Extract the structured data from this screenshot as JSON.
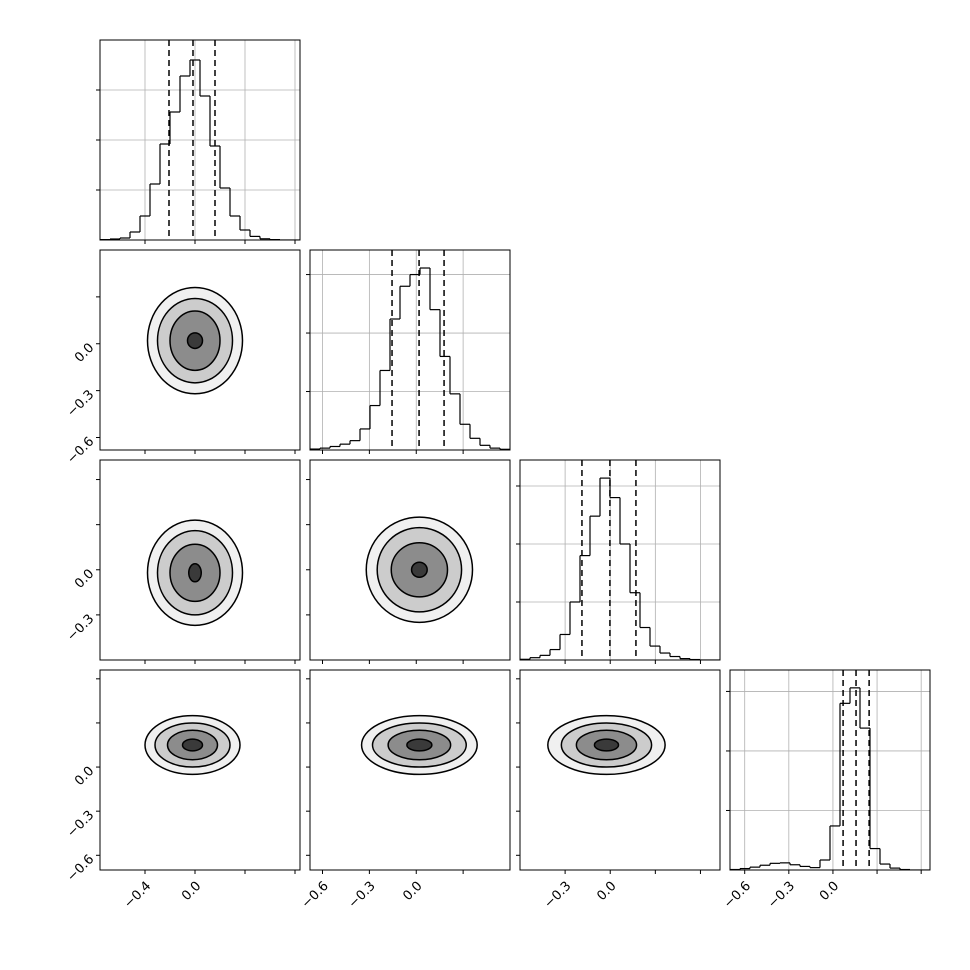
{
  "chart_data": [
    {
      "type": "histogram",
      "color": "#000000",
      "grid": true,
      "bins": [
        -0.76,
        -0.68,
        -0.6,
        -0.52,
        -0.44,
        -0.36,
        -0.28,
        -0.2,
        -0.12,
        -0.04,
        0.04,
        0.12,
        0.2,
        0.28,
        0.36,
        0.44,
        0.52,
        0.6,
        0.68,
        0.76,
        0.84
      ],
      "counts": [
        2,
        5,
        10,
        40,
        120,
        280,
        480,
        640,
        820,
        900,
        720,
        470,
        260,
        120,
        50,
        18,
        6,
        2,
        0,
        0
      ],
      "quantiles": [
        -0.208,
        -0.016,
        0.16
      ],
      "xlim": [
        -0.76,
        0.84
      ],
      "ylim": [
        0,
        1000
      ],
      "xticks": [
        -0.4,
        0,
        0.4,
        0.8
      ],
      "yticks": [
        250,
        500,
        750
      ]
    },
    {
      "type": "contour",
      "color": "#000000",
      "fills": [
        "#f0f0f0",
        "#cccccc",
        "#8c8c8c",
        "#3a3a3a"
      ],
      "center": [
        0.0,
        0.02
      ],
      "levels": [
        [
          0.38,
          0.34
        ],
        [
          0.3,
          0.27
        ],
        [
          0.2,
          0.19
        ],
        [
          0.06,
          0.05
        ]
      ],
      "xlim": [
        -0.76,
        0.84
      ],
      "ylim": [
        -0.68,
        0.6
      ],
      "xticks": [
        -0.4,
        0,
        0.4,
        0.8
      ],
      "yticks": [
        {
          "value": -0.6,
          "label": "−0.6"
        },
        {
          "value": -0.3,
          "label": "−0.3"
        },
        {
          "value": 0,
          "label": "0.0"
        },
        0.3
      ]
    },
    {
      "type": "histogram",
      "color": "#000000",
      "grid": true,
      "bins": [
        -0.68,
        -0.616,
        -0.552,
        -0.488,
        -0.424,
        -0.36,
        -0.296,
        -0.232,
        -0.168,
        -0.104,
        -0.04,
        0.024,
        0.088,
        0.152,
        0.216,
        0.28,
        0.344,
        0.408,
        0.472,
        0.536,
        0.6
      ],
      "counts": [
        4,
        8,
        15,
        25,
        40,
        90,
        190,
        340,
        560,
        700,
        750,
        778,
        600,
        400,
        240,
        110,
        50,
        20,
        8,
        3
      ],
      "quantiles": [
        -0.155,
        0.018,
        0.178
      ],
      "xlim": [
        -0.68,
        0.6
      ],
      "ylim": [
        0,
        855
      ],
      "xticks": [
        -0.6,
        -0.3,
        0,
        0.3
      ],
      "yticks": [
        250,
        500,
        750
      ]
    },
    {
      "type": "contour",
      "color": "#000000",
      "fills": [
        "#f0f0f0",
        "#cccccc",
        "#8c8c8c",
        "#3a3a3a"
      ],
      "center": [
        0.0,
        -0.02
      ],
      "levels": [
        [
          0.38,
          0.35
        ],
        [
          0.3,
          0.28
        ],
        [
          0.2,
          0.19
        ],
        [
          0.05,
          0.06
        ]
      ],
      "xlim": [
        -0.76,
        0.84
      ],
      "ylim": [
        -0.6,
        0.73
      ],
      "xticks": [
        -0.4,
        0,
        0.4,
        0.8
      ],
      "yticks": [
        {
          "value": -0.3,
          "label": "−0.3"
        },
        {
          "value": 0,
          "label": "0.0"
        },
        0.3,
        0.6
      ]
    },
    {
      "type": "contour",
      "color": "#000000",
      "fills": [
        "#f0f0f0",
        "#cccccc",
        "#8c8c8c",
        "#3a3a3a"
      ],
      "center": [
        0.02,
        0.0
      ],
      "levels": [
        [
          0.34,
          0.35
        ],
        [
          0.27,
          0.28
        ],
        [
          0.18,
          0.18
        ],
        [
          0.05,
          0.05
        ]
      ],
      "xlim": [
        -0.68,
        0.6
      ],
      "ylim": [
        -0.6,
        0.73
      ],
      "xticks": [
        -0.6,
        -0.3,
        0,
        0.3
      ],
      "yticks": [
        -0.3,
        0,
        0.3,
        0.6
      ]
    },
    {
      "type": "histogram",
      "color": "#000000",
      "grid": true,
      "bins": [
        -0.6,
        -0.5335,
        -0.467,
        -0.4005,
        -0.334,
        -0.2675,
        -0.201,
        -0.1345,
        -0.068,
        -0.0015,
        0.065,
        0.1315,
        0.198,
        0.2645,
        0.331,
        0.3975,
        0.464,
        0.5305,
        0.597,
        0.6635,
        0.73
      ],
      "counts": [
        3,
        10,
        20,
        45,
        110,
        250,
        450,
        620,
        784,
        700,
        500,
        290,
        140,
        60,
        30,
        15,
        6,
        2,
        0,
        0
      ],
      "quantiles": [
        -0.188,
        -0.002,
        0.171
      ],
      "xlim": [
        -0.6,
        0.73
      ],
      "ylim": [
        0,
        862
      ],
      "xticks": [
        -0.3,
        0,
        0.3,
        0.6
      ],
      "yticks": [
        250,
        500,
        750
      ]
    },
    {
      "type": "contour",
      "color": "#000000",
      "fills": [
        "#f0f0f0",
        "#cccccc",
        "#8c8c8c",
        "#3a3a3a"
      ],
      "center": [
        -0.02,
        0.15
      ],
      "levels": [
        [
          0.38,
          0.2
        ],
        [
          0.3,
          0.15
        ],
        [
          0.2,
          0.1
        ],
        [
          0.08,
          0.04
        ]
      ],
      "xlim": [
        -0.76,
        0.84
      ],
      "ylim": [
        -0.7,
        0.66
      ],
      "xticks": [
        {
          "value": -0.4,
          "label": "−0.4"
        },
        {
          "value": 0,
          "label": "0.0"
        },
        0.4,
        0.8
      ],
      "yticks": [
        {
          "value": -0.6,
          "label": "−0.6"
        },
        {
          "value": -0.3,
          "label": "−0.3"
        },
        {
          "value": 0,
          "label": "0.0"
        },
        0.3,
        0.6
      ]
    },
    {
      "type": "contour",
      "color": "#000000",
      "fills": [
        "#f0f0f0",
        "#cccccc",
        "#8c8c8c",
        "#3a3a3a"
      ],
      "center": [
        0.02,
        0.15
      ],
      "levels": [
        [
          0.37,
          0.2
        ],
        [
          0.3,
          0.15
        ],
        [
          0.2,
          0.1
        ],
        [
          0.08,
          0.04
        ]
      ],
      "xlim": [
        -0.68,
        0.6
      ],
      "ylim": [
        -0.7,
        0.66
      ],
      "xticks": [
        {
          "value": -0.6,
          "label": "−0.6"
        },
        {
          "value": -0.3,
          "label": "−0.3"
        },
        {
          "value": 0,
          "label": "0.0"
        },
        0.3
      ],
      "yticks": [
        -0.6,
        -0.3,
        0,
        0.3,
        0.6
      ]
    },
    {
      "type": "contour",
      "color": "#000000",
      "fills": [
        "#f0f0f0",
        "#cccccc",
        "#8c8c8c",
        "#3a3a3a"
      ],
      "center": [
        -0.025,
        0.15
      ],
      "levels": [
        [
          0.39,
          0.2
        ],
        [
          0.3,
          0.15
        ],
        [
          0.2,
          0.1
        ],
        [
          0.08,
          0.04
        ]
      ],
      "xlim": [
        -0.6,
        0.73
      ],
      "ylim": [
        -0.7,
        0.66
      ],
      "xticks": [
        {
          "value": -0.3,
          "label": "−0.3"
        },
        {
          "value": 0,
          "label": "0.0"
        },
        0.3,
        0.6
      ],
      "yticks": [
        -0.6,
        -0.3,
        0,
        0.3,
        0.6
      ]
    },
    {
      "type": "histogram",
      "color": "#000000",
      "grid": true,
      "bins": [
        -0.7,
        -0.632,
        -0.564,
        -0.496,
        -0.428,
        -0.36,
        -0.292,
        -0.224,
        -0.156,
        -0.088,
        -0.02,
        0.048,
        0.116,
        0.184,
        0.252,
        0.32,
        0.388,
        0.456,
        0.524,
        0.592,
        0.66
      ],
      "counts": [
        2,
        6,
        12,
        20,
        28,
        30,
        22,
        15,
        10,
        42,
        185,
        700,
        765,
        596,
        90,
        25,
        8,
        2,
        0,
        0
      ],
      "quantiles": [
        0.069,
        0.157,
        0.246
      ],
      "xlim": [
        -0.7,
        0.66
      ],
      "ylim": [
        0,
        840
      ],
      "xticks": [
        {
          "value": -0.6,
          "label": "−0.6"
        },
        {
          "value": -0.3,
          "label": "−0.3"
        },
        {
          "value": 0,
          "label": "0.0"
        },
        0.3,
        0.6
      ],
      "yticks": [
        250,
        500,
        750
      ]
    }
  ]
}
